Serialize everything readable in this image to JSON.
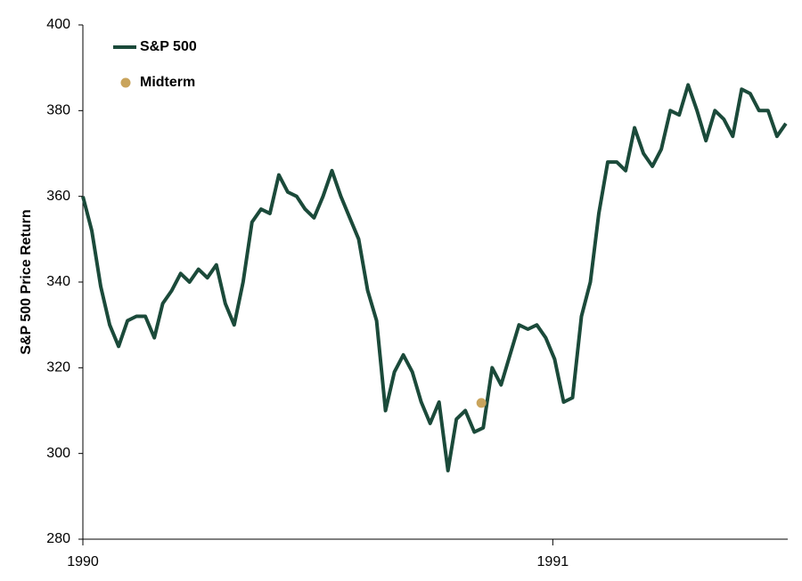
{
  "chart_data": {
    "type": "line",
    "ylabel": "S&P 500 Price Return",
    "xlim": [
      1990,
      1991.5
    ],
    "xticks": [
      1990,
      1991
    ],
    "ylim": [
      280,
      400
    ],
    "yticks": [
      280,
      300,
      320,
      340,
      360,
      380,
      400
    ],
    "legend": "upper left",
    "series": [
      {
        "name": "S&P 500",
        "color": "#1b4a3a",
        "mode": "line",
        "x": [
          1990.0,
          1990.019,
          1990.038,
          1990.057,
          1990.076,
          1990.095,
          1990.114,
          1990.133,
          1990.152,
          1990.17,
          1990.189,
          1990.208,
          1990.227,
          1990.246,
          1990.265,
          1990.284,
          1990.303,
          1990.322,
          1990.341,
          1990.36,
          1990.379,
          1990.398,
          1990.417,
          1990.436,
          1990.455,
          1990.473,
          1990.492,
          1990.511,
          1990.53,
          1990.549,
          1990.568,
          1990.587,
          1990.606,
          1990.625,
          1990.644,
          1990.663,
          1990.682,
          1990.701,
          1990.72,
          1990.739,
          1990.758,
          1990.777,
          1990.795,
          1990.814,
          1990.833,
          1990.852,
          1990.871,
          1990.89,
          1990.909,
          1990.928,
          1990.947,
          1990.966,
          1990.985,
          1991.004,
          1991.023,
          1991.042,
          1991.061,
          1991.08,
          1991.098,
          1991.117,
          1991.136,
          1991.155,
          1991.174,
          1991.193,
          1991.212,
          1991.231,
          1991.25,
          1991.269,
          1991.288,
          1991.307,
          1991.326,
          1991.345,
          1991.364,
          1991.383,
          1991.402,
          1991.42,
          1991.439,
          1991.458,
          1991.477,
          1991.496
        ],
        "values": [
          360,
          352,
          339,
          330,
          325,
          331,
          332,
          332,
          327,
          335,
          338,
          342,
          340,
          343,
          341,
          344,
          335,
          330,
          340,
          354,
          357,
          356,
          365,
          361,
          360,
          357,
          355,
          360,
          366,
          360,
          355,
          350,
          338,
          331,
          310,
          319,
          323,
          319,
          312,
          307,
          312,
          296,
          308,
          310,
          305,
          306,
          320,
          316,
          323,
          330,
          329,
          330,
          327,
          322,
          312,
          313,
          332,
          340,
          356,
          368,
          368,
          366,
          376,
          370,
          367,
          371,
          380,
          379,
          386,
          380,
          373,
          380,
          378,
          374,
          385,
          384,
          380,
          380,
          374,
          377
        ]
      },
      {
        "name": "Midterm",
        "color": "#c9a45c",
        "mode": "markers",
        "x": [
          1990.848
        ],
        "values": [
          311.8
        ]
      }
    ]
  }
}
